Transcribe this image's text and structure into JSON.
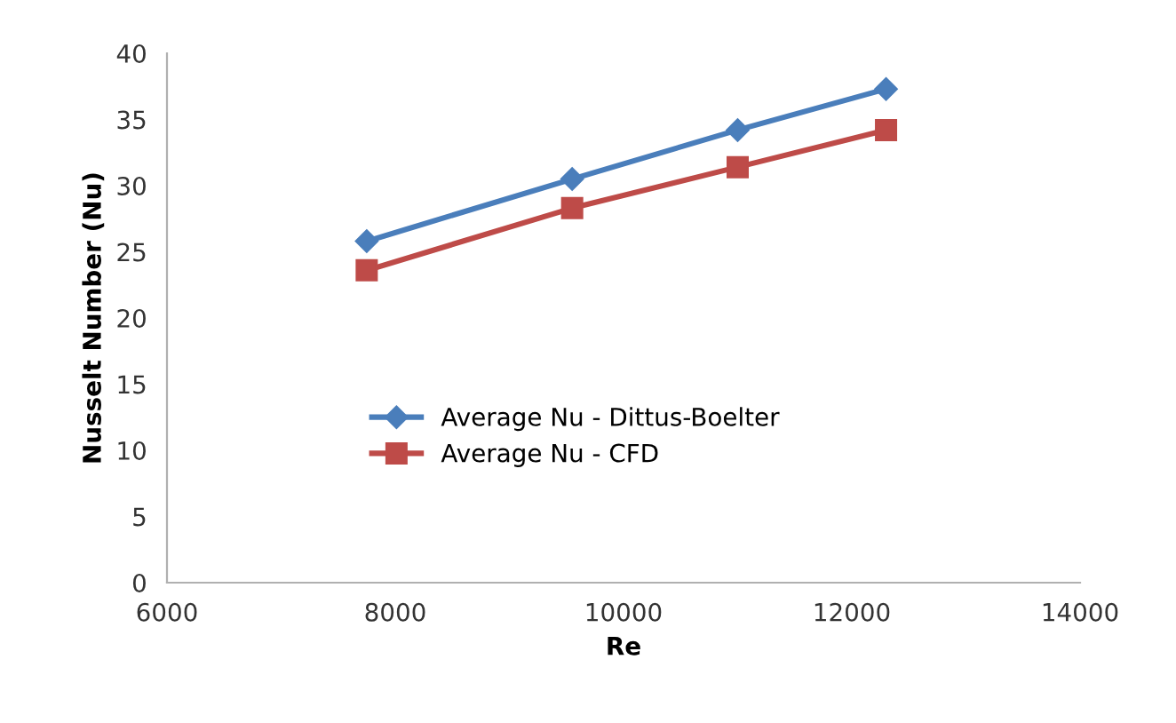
{
  "chart_data": {
    "type": "line",
    "xlabel": "Re",
    "ylabel": "Nusselt Number (Nu)",
    "x": [
      7750,
      9550,
      11000,
      12300
    ],
    "series": [
      {
        "name": "Average Nu - Dittus-Boelter",
        "color": "#4a7ebb",
        "marker": "diamond",
        "values": [
          25.8,
          30.5,
          34.2,
          37.3
        ]
      },
      {
        "name": "Average Nu - CFD",
        "color": "#be4b48",
        "marker": "square",
        "values": [
          23.6,
          28.3,
          31.4,
          34.2
        ]
      }
    ],
    "xlim": [
      6000,
      14000
    ],
    "xticks": [
      6000,
      8000,
      10000,
      12000,
      14000
    ],
    "ylim": [
      0,
      40
    ],
    "yticks": [
      0,
      5,
      10,
      15,
      20,
      25,
      30,
      35,
      40
    ],
    "grid": false,
    "legend": "center left"
  }
}
